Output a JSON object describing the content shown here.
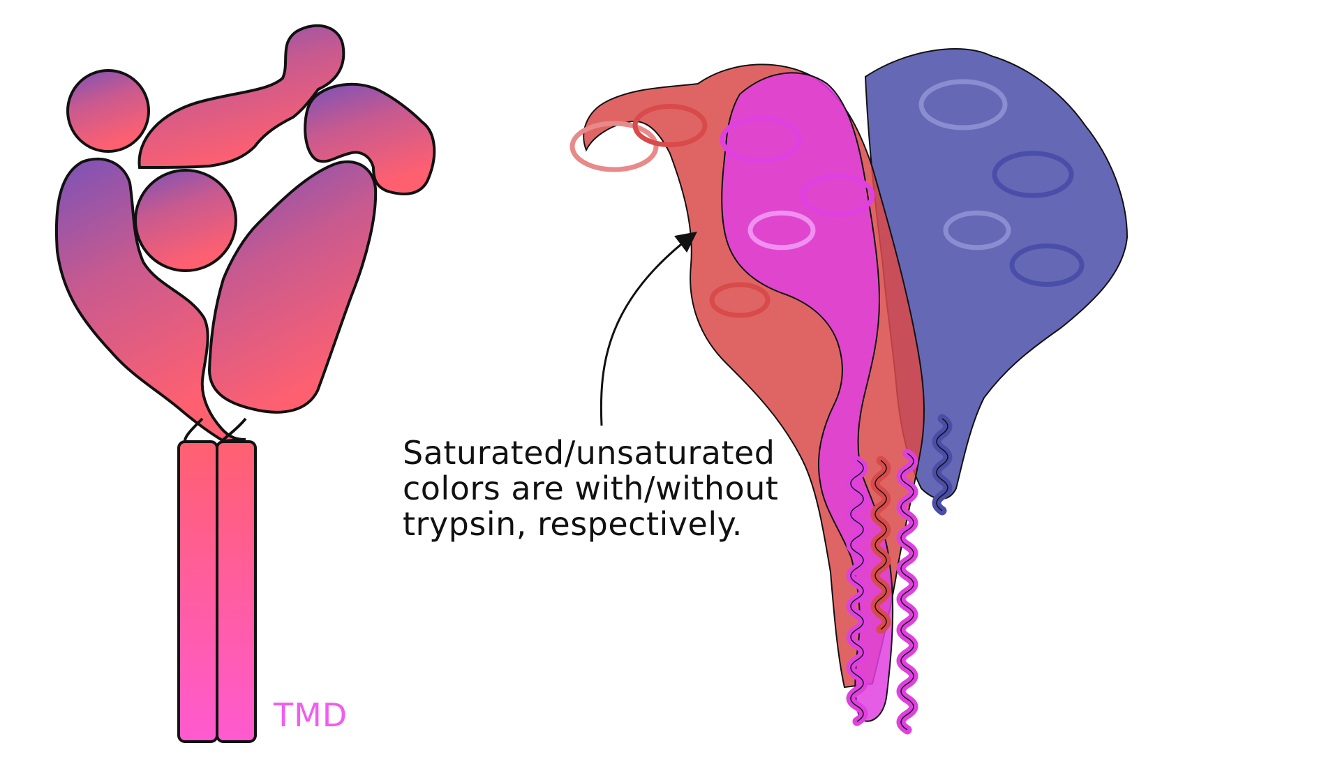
{
  "caption": {
    "lines": [
      "Saturated/unsaturated",
      "colors are with/without",
      "trypsin, respectively."
    ]
  },
  "labels": {
    "tmd": "TMD"
  },
  "colors": {
    "outline": "#111111",
    "gradient_top": "#7a52b8",
    "gradient_mid": "#c85a8f",
    "gradient_low": "#ff6070",
    "gradient_bottom": "#ff5ad0",
    "tmd_label": "#f25cf0",
    "chain_red": "#d94a4a",
    "chain_red_light": "#e88a8a",
    "chain_magenta": "#e040e0",
    "chain_magenta_light": "#f090f0",
    "chain_blue": "#4a4ea8",
    "chain_blue_light": "#8a8ed0",
    "arrow": "#111111"
  }
}
